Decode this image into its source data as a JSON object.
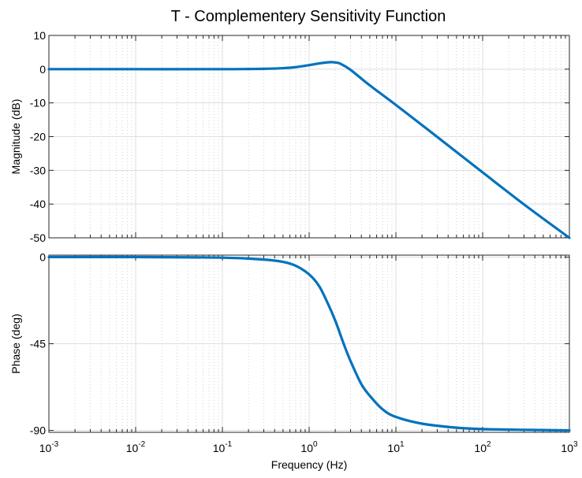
{
  "title": "T - Complementery Sensitivity Function",
  "colors": {
    "line": "#0072BD",
    "major_grid": "#dedede",
    "minor_grid": "#c8c8c8",
    "axes": "#262626",
    "background": "#ffffff"
  },
  "chart_data": [
    {
      "type": "line",
      "panel": "magnitude",
      "title": "T - Complementery Sensitivity Function",
      "xlabel": "",
      "ylabel": "Magnitude (dB)",
      "xscale": "log",
      "xlim": [
        0.001,
        1000
      ],
      "ylim": [
        -50,
        10
      ],
      "yticks": [
        10,
        0,
        -10,
        -20,
        -30,
        -40,
        -50
      ],
      "ytick_labels": [
        "10",
        "0",
        "-10",
        "-20",
        "-30",
        "-40",
        "-50"
      ],
      "grid": "major and minor",
      "series": [
        {
          "x": [
            0.001,
            0.01,
            0.1,
            0.2,
            0.3,
            0.5,
            0.7,
            1,
            1.3,
            1.6,
            1.8,
            2,
            2.3,
            3,
            5,
            10,
            30,
            100,
            300,
            1000
          ],
          "y": [
            0,
            0,
            0,
            0.05,
            0.1,
            0.3,
            0.6,
            1.2,
            1.7,
            2.0,
            2.1,
            2.0,
            1.6,
            -0.2,
            -4.8,
            -10.6,
            -20.1,
            -30.6,
            -40.1,
            -50
          ]
        }
      ]
    },
    {
      "type": "line",
      "panel": "phase",
      "xlabel": "Frequency  (Hz)",
      "ylabel": "Phase (deg)",
      "xscale": "log",
      "xlim": [
        0.001,
        1000
      ],
      "ylim": [
        -91,
        1
      ],
      "yticks": [
        0,
        -45,
        -90
      ],
      "ytick_labels": [
        "0",
        "-45",
        "-90"
      ],
      "xtick_labels": [
        {
          "base": "10",
          "exp": "-3"
        },
        {
          "base": "10",
          "exp": "-2"
        },
        {
          "base": "10",
          "exp": "-1"
        },
        {
          "base": "10",
          "exp": "0"
        },
        {
          "base": "10",
          "exp": "1"
        },
        {
          "base": "10",
          "exp": "2"
        },
        {
          "base": "10",
          "exp": "3"
        }
      ],
      "grid": "major and minor",
      "series": [
        {
          "x": [
            0.001,
            0.01,
            0.1,
            0.3,
            0.5,
            0.7,
            1,
            1.3,
            1.6,
            2,
            2.5,
            3,
            4,
            5,
            7,
            10,
            20,
            50,
            100,
            300,
            1000
          ],
          "y": [
            0,
            0,
            -0.3,
            -1.3,
            -2.5,
            -4.5,
            -9,
            -15,
            -23,
            -33,
            -45,
            -54,
            -66,
            -72,
            -79,
            -83,
            -86.5,
            -88.6,
            -89.3,
            -89.7,
            -90
          ]
        }
      ]
    }
  ]
}
